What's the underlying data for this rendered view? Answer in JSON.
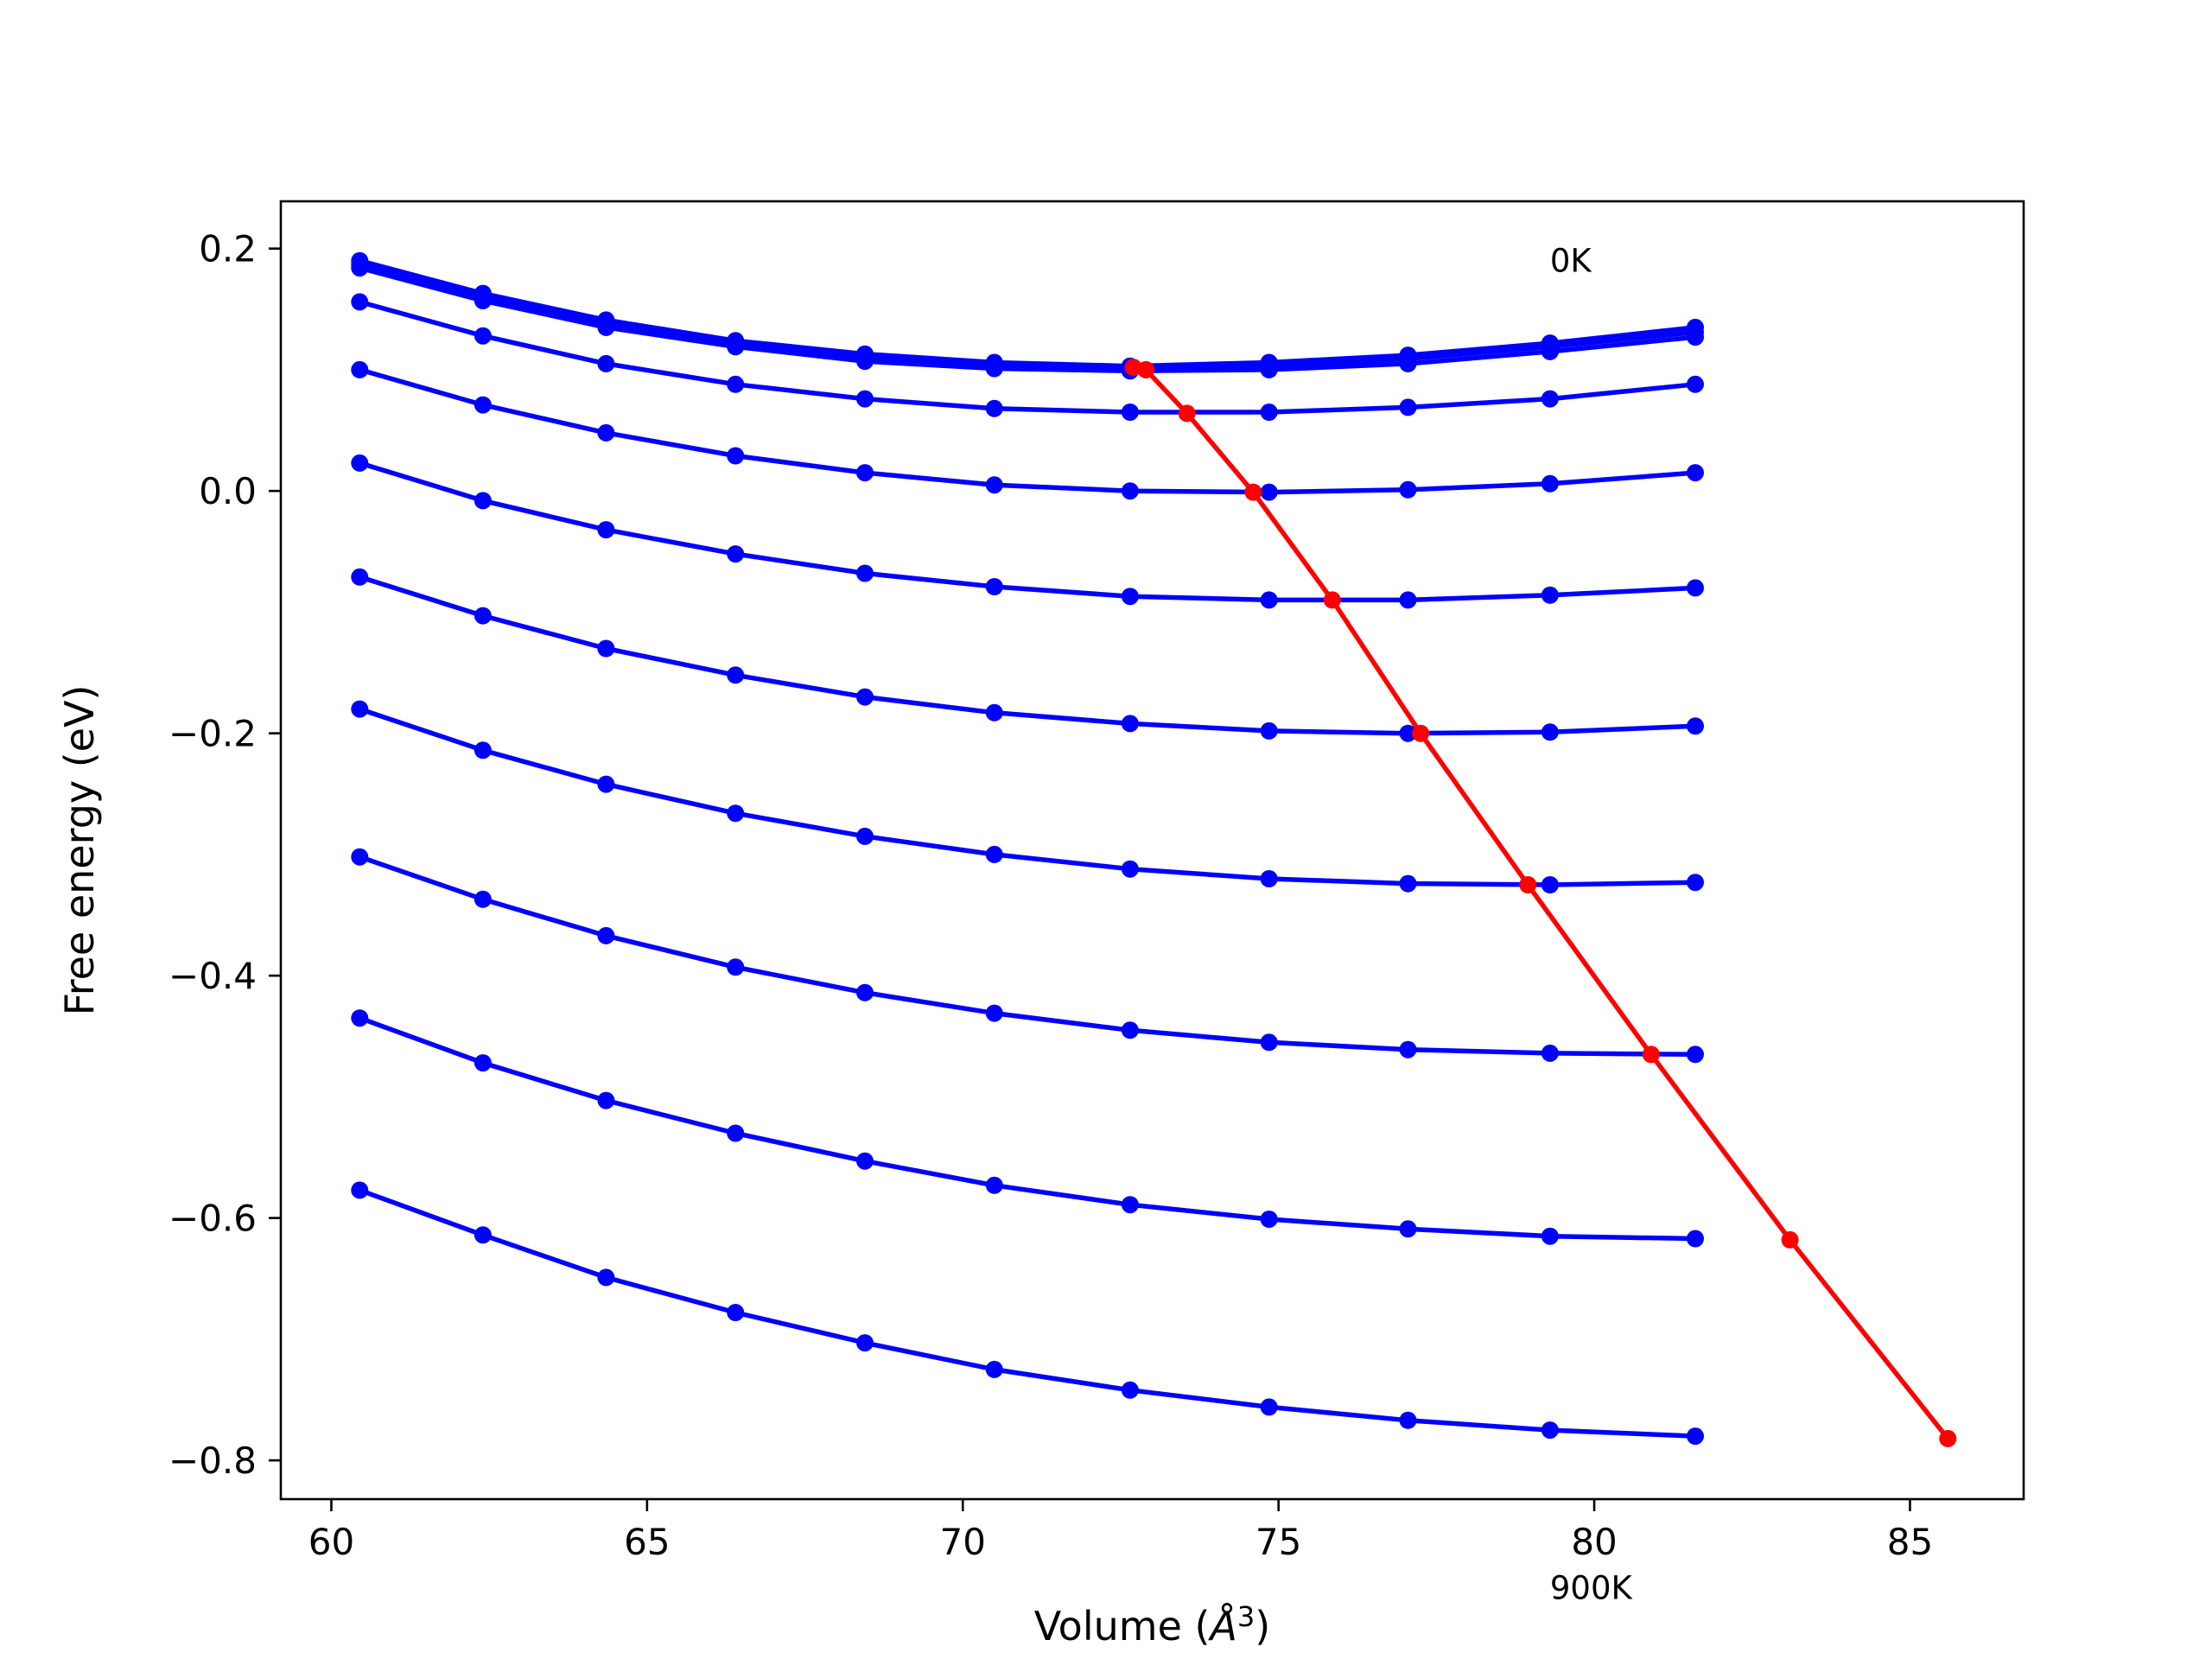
{
  "chart_data": {
    "type": "line",
    "xlabel": "Volume (Å³)",
    "xlabel_parts": {
      "text": "Volume (",
      "unit": "Å",
      "sup": "3",
      "close": ")"
    },
    "ylabel": "Free energy (eV)",
    "xlim": [
      59.2,
      86.8
    ],
    "ylim": [
      -0.832,
      0.239
    ],
    "xticks": [
      60,
      65,
      70,
      75,
      80,
      85
    ],
    "xtick_labels": [
      "60",
      "65",
      "70",
      "75",
      "80",
      "85"
    ],
    "yticks": [
      -0.8,
      -0.6,
      -0.4,
      -0.2,
      0.0,
      0.2
    ],
    "ytick_labels": [
      "−0.8",
      "−0.6",
      "−0.4",
      "−0.2",
      "0.0",
      "0.2"
    ],
    "grid": false,
    "legend": "none",
    "annotations": [
      {
        "text": "0K",
        "x": 79.3,
        "y": 0.19
      },
      {
        "text": "900K",
        "x": 79.3,
        "y": -0.905
      }
    ],
    "colors": {
      "isotherm": "#0000ff",
      "minimum_path": "#ff0000"
    },
    "x": [
      60.45,
      62.4,
      64.35,
      66.4,
      68.45,
      70.5,
      72.65,
      74.85,
      77.05,
      79.3,
      81.6
    ],
    "series": [
      {
        "temperature": "0K",
        "color": "#0000ff",
        "values": [
          0.19,
          0.163,
          0.141,
          0.124,
          0.113,
          0.106,
          0.103,
          0.106,
          0.112,
          0.122,
          0.135
        ]
      },
      {
        "color": "#0000ff",
        "values": [
          0.187,
          0.16,
          0.138,
          0.121,
          0.11,
          0.104,
          0.101,
          0.103,
          0.109,
          0.119,
          0.131
        ]
      },
      {
        "color": "#0000ff",
        "values": [
          0.184,
          0.157,
          0.135,
          0.119,
          0.107,
          0.101,
          0.099,
          0.1,
          0.105,
          0.115,
          0.127
        ]
      },
      {
        "color": "#0000ff",
        "values": [
          0.156,
          0.128,
          0.105,
          0.088,
          0.076,
          0.068,
          0.065,
          0.065,
          0.069,
          0.076,
          0.088
        ]
      },
      {
        "color": "#0000ff",
        "values": [
          0.1,
          0.071,
          0.048,
          0.029,
          0.015,
          0.005,
          0.0,
          -0.001,
          0.001,
          0.006,
          0.015
        ]
      },
      {
        "color": "#0000ff",
        "values": [
          0.023,
          -0.008,
          -0.032,
          -0.052,
          -0.068,
          -0.079,
          -0.087,
          -0.09,
          -0.09,
          -0.086,
          -0.08
        ]
      },
      {
        "color": "#0000ff",
        "values": [
          -0.071,
          -0.103,
          -0.13,
          -0.152,
          -0.17,
          -0.183,
          -0.192,
          -0.198,
          -0.2,
          -0.199,
          -0.194
        ]
      },
      {
        "color": "#0000ff",
        "values": [
          -0.18,
          -0.214,
          -0.242,
          -0.266,
          -0.285,
          -0.3,
          -0.312,
          -0.32,
          -0.324,
          -0.325,
          -0.323
        ]
      },
      {
        "color": "#0000ff",
        "values": [
          -0.302,
          -0.337,
          -0.367,
          -0.393,
          -0.414,
          -0.431,
          -0.445,
          -0.455,
          -0.461,
          -0.464,
          -0.465
        ]
      },
      {
        "color": "#0000ff",
        "values": [
          -0.435,
          -0.472,
          -0.503,
          -0.53,
          -0.553,
          -0.573,
          -0.589,
          -0.601,
          -0.609,
          -0.615,
          -0.617
        ]
      },
      {
        "temperature": "900K",
        "color": "#0000ff",
        "values": [
          -0.577,
          -0.614,
          -0.649,
          -0.678,
          -0.703,
          -0.725,
          -0.742,
          -0.756,
          -0.767,
          -0.775,
          -0.78
        ]
      }
    ],
    "minimum_path": {
      "color": "#ff0000",
      "points": [
        [
          72.7,
          0.102
        ],
        [
          72.9,
          0.1
        ],
        [
          73.55,
          0.064
        ],
        [
          74.6,
          -0.001
        ],
        [
          75.85,
          -0.09
        ],
        [
          77.25,
          -0.2
        ],
        [
          78.95,
          -0.325
        ],
        [
          80.9,
          -0.465
        ],
        [
          83.1,
          -0.618
        ],
        [
          85.6,
          -0.782
        ]
      ]
    }
  }
}
